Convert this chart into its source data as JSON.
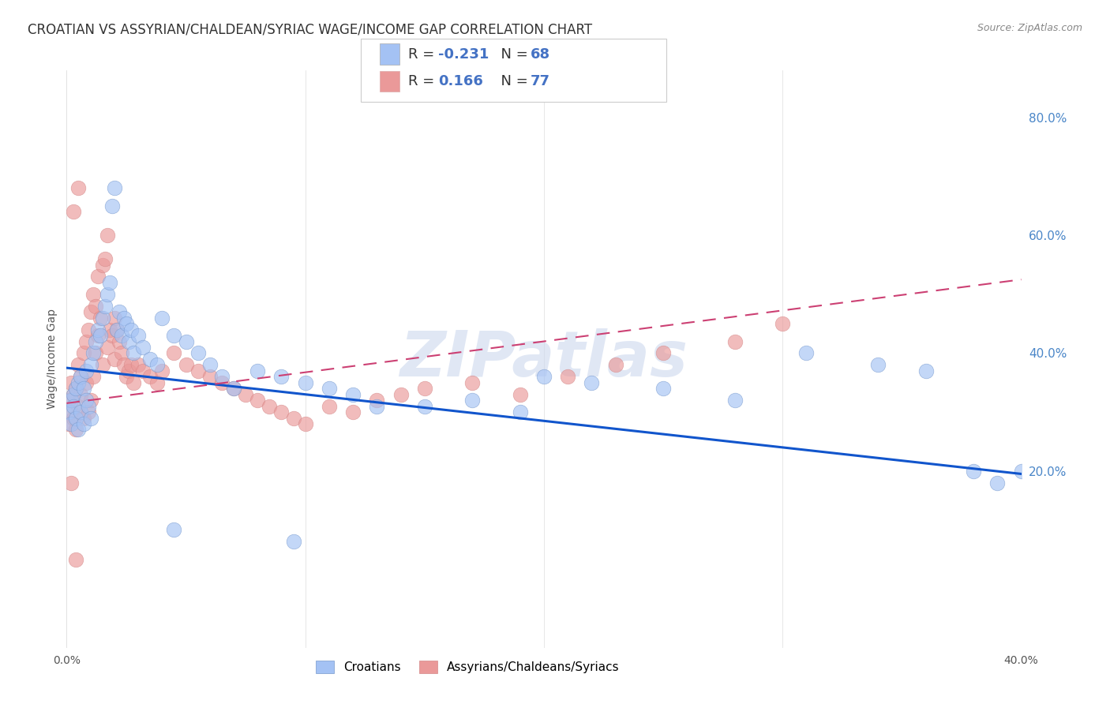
{
  "title": "CROATIAN VS ASSYRIAN/CHALDEAN/SYRIAC WAGE/INCOME GAP CORRELATION CHART",
  "source": "Source: ZipAtlas.com",
  "ylabel": "Wage/Income Gap",
  "xmin": 0.0,
  "xmax": 0.4,
  "ymin": -0.1,
  "ymax": 0.88,
  "yticks_right": [
    0.2,
    0.4,
    0.6,
    0.8
  ],
  "ytick_right_labels": [
    "20.0%",
    "40.0%",
    "60.0%",
    "80.0%"
  ],
  "legend1_R": "-0.231",
  "legend1_N": "68",
  "legend2_R": "0.166",
  "legend2_N": "77",
  "blue_color": "#a4c2f4",
  "pink_color": "#ea9999",
  "blue_line_color": "#1155cc",
  "pink_line_color": "#cc4073",
  "watermark": "ZIPatlas",
  "croatians_label": "Croatians",
  "assyrians_label": "Assyrians/Chaldeans/Syriacs",
  "blue_scatter_x": [
    0.001,
    0.002,
    0.002,
    0.003,
    0.003,
    0.004,
    0.004,
    0.005,
    0.005,
    0.006,
    0.006,
    0.007,
    0.007,
    0.008,
    0.008,
    0.009,
    0.01,
    0.01,
    0.011,
    0.012,
    0.013,
    0.014,
    0.015,
    0.016,
    0.017,
    0.018,
    0.019,
    0.02,
    0.021,
    0.022,
    0.023,
    0.024,
    0.025,
    0.026,
    0.027,
    0.028,
    0.03,
    0.032,
    0.035,
    0.038,
    0.04,
    0.045,
    0.05,
    0.055,
    0.06,
    0.065,
    0.07,
    0.08,
    0.09,
    0.1,
    0.11,
    0.12,
    0.13,
    0.15,
    0.17,
    0.19,
    0.2,
    0.22,
    0.25,
    0.28,
    0.31,
    0.34,
    0.36,
    0.38,
    0.39,
    0.4,
    0.045,
    0.095
  ],
  "blue_scatter_y": [
    0.3,
    0.32,
    0.28,
    0.33,
    0.31,
    0.34,
    0.29,
    0.35,
    0.27,
    0.36,
    0.3,
    0.34,
    0.28,
    0.37,
    0.32,
    0.31,
    0.38,
    0.29,
    0.4,
    0.42,
    0.44,
    0.43,
    0.46,
    0.48,
    0.5,
    0.52,
    0.65,
    0.68,
    0.44,
    0.47,
    0.43,
    0.46,
    0.45,
    0.42,
    0.44,
    0.4,
    0.43,
    0.41,
    0.39,
    0.38,
    0.46,
    0.43,
    0.42,
    0.4,
    0.38,
    0.36,
    0.34,
    0.37,
    0.36,
    0.35,
    0.34,
    0.33,
    0.31,
    0.31,
    0.32,
    0.3,
    0.36,
    0.35,
    0.34,
    0.32,
    0.4,
    0.38,
    0.37,
    0.2,
    0.18,
    0.2,
    0.1,
    0.08
  ],
  "pink_scatter_x": [
    0.001,
    0.001,
    0.002,
    0.002,
    0.003,
    0.003,
    0.004,
    0.004,
    0.005,
    0.005,
    0.006,
    0.006,
    0.007,
    0.007,
    0.008,
    0.008,
    0.009,
    0.009,
    0.01,
    0.01,
    0.011,
    0.011,
    0.012,
    0.012,
    0.013,
    0.013,
    0.014,
    0.015,
    0.015,
    0.016,
    0.017,
    0.017,
    0.018,
    0.019,
    0.02,
    0.02,
    0.021,
    0.022,
    0.023,
    0.024,
    0.025,
    0.026,
    0.027,
    0.028,
    0.03,
    0.032,
    0.035,
    0.038,
    0.04,
    0.045,
    0.05,
    0.055,
    0.06,
    0.065,
    0.07,
    0.075,
    0.08,
    0.085,
    0.09,
    0.095,
    0.1,
    0.11,
    0.12,
    0.13,
    0.14,
    0.15,
    0.17,
    0.19,
    0.21,
    0.23,
    0.25,
    0.28,
    0.3,
    0.003,
    0.005,
    0.002,
    0.004
  ],
  "pink_scatter_y": [
    0.28,
    0.32,
    0.3,
    0.35,
    0.33,
    0.29,
    0.34,
    0.27,
    0.38,
    0.31,
    0.36,
    0.33,
    0.4,
    0.29,
    0.42,
    0.35,
    0.44,
    0.3,
    0.47,
    0.32,
    0.5,
    0.36,
    0.48,
    0.4,
    0.53,
    0.43,
    0.46,
    0.55,
    0.38,
    0.56,
    0.6,
    0.41,
    0.44,
    0.43,
    0.46,
    0.39,
    0.44,
    0.42,
    0.4,
    0.38,
    0.36,
    0.37,
    0.38,
    0.35,
    0.38,
    0.37,
    0.36,
    0.35,
    0.37,
    0.4,
    0.38,
    0.37,
    0.36,
    0.35,
    0.34,
    0.33,
    0.32,
    0.31,
    0.3,
    0.29,
    0.28,
    0.31,
    0.3,
    0.32,
    0.33,
    0.34,
    0.35,
    0.33,
    0.36,
    0.38,
    0.4,
    0.42,
    0.45,
    0.64,
    0.68,
    0.18,
    0.05
  ],
  "blue_trend_x": [
    0.0,
    0.4
  ],
  "blue_trend_y": [
    0.375,
    0.195
  ],
  "pink_trend_x": [
    0.0,
    0.4
  ],
  "pink_trend_y": [
    0.315,
    0.525
  ],
  "background_color": "#ffffff",
  "grid_color": "#cccccc"
}
